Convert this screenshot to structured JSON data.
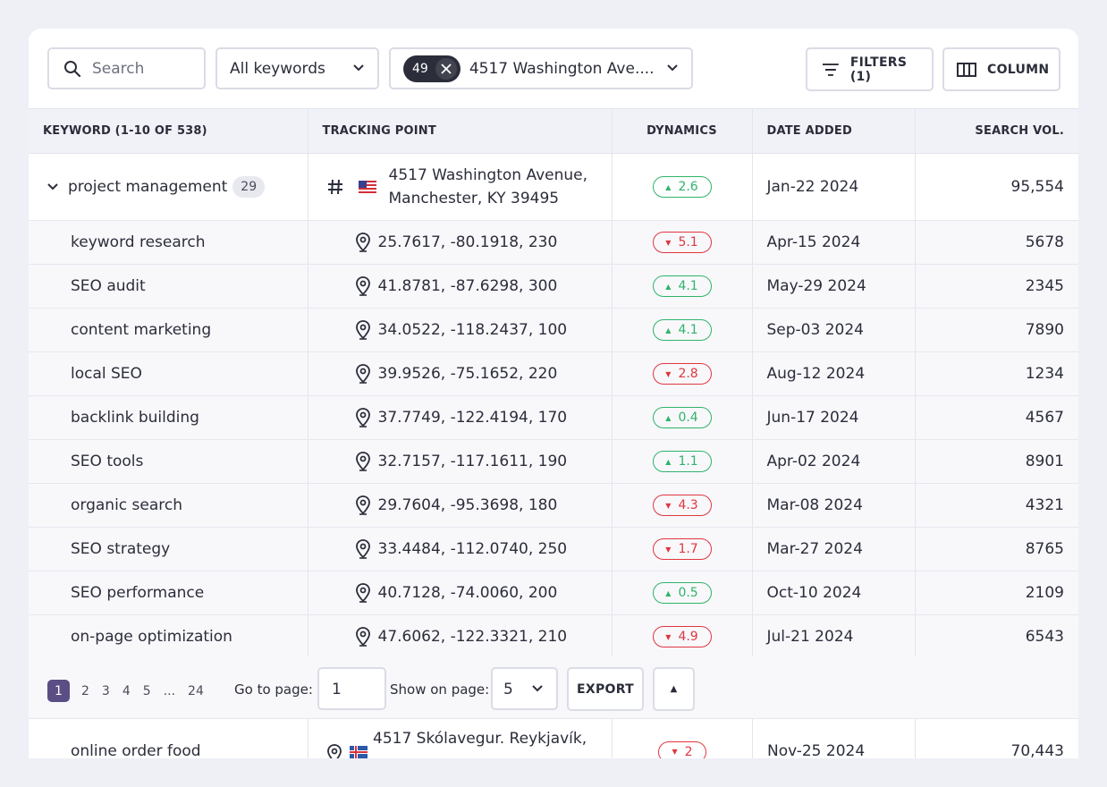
{
  "toolbar": {
    "search_placeholder": "Search",
    "keyword_select": "All keywords",
    "tracking_chip_count": "49",
    "tracking_select": "4517 Washington Ave....",
    "filters_label": "FILTERS (1)",
    "columns_label": "COLUMN"
  },
  "table": {
    "headers": {
      "keyword": "KEYWORD (1-10 OF 538)",
      "tracking": "TRACKING POINT",
      "dynamics": "DYNAMICS",
      "date": "DATE ADDED",
      "volume": "SEARCH VOL."
    },
    "parent": {
      "keyword": "project management",
      "count": "29",
      "address_line1": "4517 Washington Avenue,",
      "address_line2": "Manchester, KY 39495",
      "dynamics": "2.6",
      "dynamics_dir": "up",
      "date": "Jan-22 2024",
      "volume": "95,554",
      "icon": "hash-icon",
      "flag": "us-flag"
    },
    "rows": [
      {
        "keyword": "keyword research",
        "coords": "25.7617, -80.1918, 230",
        "dynamics": "5.1",
        "dir": "down",
        "date": "Apr-15 2024",
        "volume": "5678"
      },
      {
        "keyword": "SEO audit",
        "coords": "41.8781, -87.6298, 300",
        "dynamics": "4.1",
        "dir": "up",
        "date": "May-29 2024",
        "volume": "2345"
      },
      {
        "keyword": "content marketing",
        "coords": "34.0522, -118.2437, 100",
        "dynamics": "4.1",
        "dir": "up",
        "date": "Sep-03 2024",
        "volume": "7890"
      },
      {
        "keyword": "local SEO",
        "coords": "39.9526, -75.1652, 220",
        "dynamics": "2.8",
        "dir": "down",
        "date": "Aug-12 2024",
        "volume": "1234"
      },
      {
        "keyword": "backlink building",
        "coords": "37.7749, -122.4194, 170",
        "dynamics": "0.4",
        "dir": "up",
        "date": "Jun-17 2024",
        "volume": "4567"
      },
      {
        "keyword": "SEO tools",
        "coords": "32.7157, -117.1611, 190",
        "dynamics": "1.1",
        "dir": "up",
        "date": "Apr-02 2024",
        "volume": "8901"
      },
      {
        "keyword": "organic search",
        "coords": "29.7604, -95.3698, 180",
        "dynamics": "4.3",
        "dir": "down",
        "date": "Mar-08 2024",
        "volume": "4321"
      },
      {
        "keyword": "SEO strategy",
        "coords": "33.4484, -112.0740, 250",
        "dynamics": "1.7",
        "dir": "down",
        "date": "Mar-27 2024",
        "volume": "8765"
      },
      {
        "keyword": "SEO performance",
        "coords": "40.7128, -74.0060, 200",
        "dynamics": "0.5",
        "dir": "up",
        "date": "Oct-10 2024",
        "volume": "2109"
      },
      {
        "keyword": "on-page optimization",
        "coords": "47.6062, -122.3321, 210",
        "dynamics": "4.9",
        "dir": "down",
        "date": "Jul-21 2024",
        "volume": "6543"
      }
    ]
  },
  "pagination": {
    "pages": [
      "1",
      "2",
      "3",
      "4",
      "5",
      "...",
      "24"
    ],
    "active_page": "1",
    "goto_label": "Go to page:",
    "goto_value": "1",
    "show_label": "Show on page:",
    "show_value": "5",
    "export_label": "EXPORT"
  },
  "next_group": {
    "keyword": "online order food",
    "address_line1": "4517 Skólavegur. Reykjavík,",
    "dynamics": "2",
    "dir": "down",
    "date": "Nov-25 2024",
    "volume": "70,443",
    "flag": "iceland-flag"
  },
  "colors": {
    "up": "#2fb36a",
    "down": "#e0363f",
    "active_page": "#5a4e84",
    "background": "#eef0f6"
  }
}
